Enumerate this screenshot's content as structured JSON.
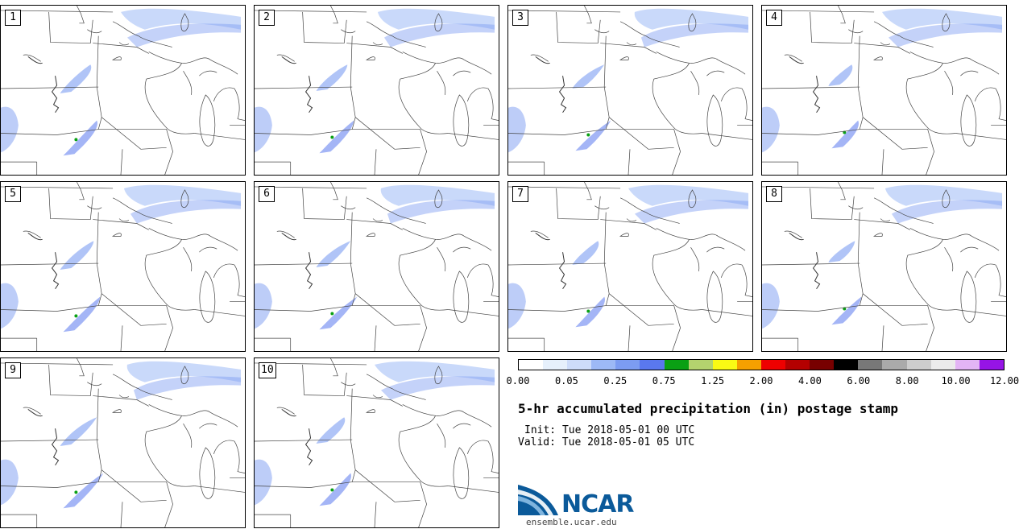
{
  "panels": [
    {
      "label": "1"
    },
    {
      "label": "2"
    },
    {
      "label": "3"
    },
    {
      "label": "4"
    },
    {
      "label": "5"
    },
    {
      "label": "6"
    },
    {
      "label": "7"
    },
    {
      "label": "8"
    },
    {
      "label": "9"
    },
    {
      "label": "10"
    }
  ],
  "colorbar": {
    "colors": [
      "#ffffff",
      "#e6f0fc",
      "#cddcfa",
      "#9db9f6",
      "#7c9cf2",
      "#5a78ee",
      "#0aa014",
      "#b4d36e",
      "#fafa14",
      "#f5a000",
      "#ee0000",
      "#b40000",
      "#780000",
      "#000000",
      "#787878",
      "#aaaaaa",
      "#cdcdcd",
      "#ebebeb",
      "#e3b4f5",
      "#9614e6"
    ],
    "ticks": [
      "0.00",
      "0.05",
      "0.25",
      "0.75",
      "1.25",
      "2.00",
      "4.00",
      "6.00",
      "8.00",
      "10.00",
      "12.00"
    ]
  },
  "title": "5-hr accumulated precipitation (in) postage stamp",
  "init": "Init: Tue 2018-05-01 00 UTC",
  "valid": "Valid: Tue 2018-05-01 05 UTC",
  "logo": {
    "word": "NCAR",
    "url": "ensemble.ucar.edu"
  }
}
